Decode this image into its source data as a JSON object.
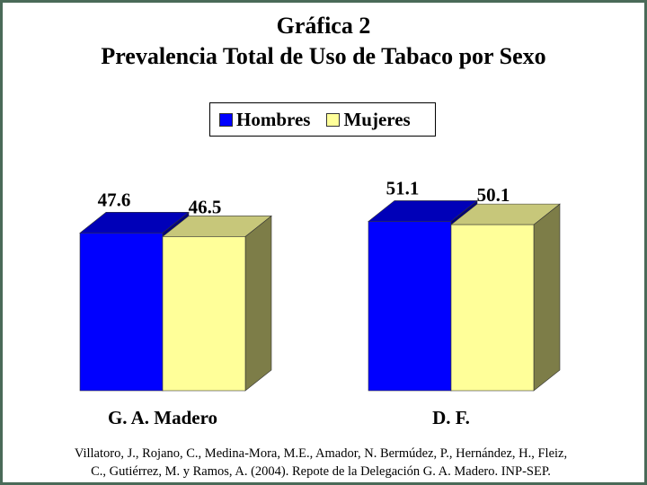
{
  "chart_data": {
    "type": "bar",
    "title": "Gráfica 2",
    "subtitle": "Prevalencia Total de Uso de Tabaco por Sexo",
    "categories": [
      "G. A. Madero",
      "D. F."
    ],
    "series": [
      {
        "name": "Hombres",
        "values": [
          47.6,
          51.1
        ],
        "color": "#0000ff"
      },
      {
        "name": "Mujeres",
        "values": [
          46.5,
          50.1
        ],
        "color": "#ffff99"
      }
    ],
    "three_d": true,
    "legend_position": "top-center",
    "grid": false
  },
  "source": {
    "line1": "Villatoro, J., Rojano, C., Medina-Mora, M.E., Amador, N. Bermúdez, P., Hernández, H., Fleiz,",
    "line2": "C., Gutiérrez, M. y Ramos, A. (2004). Repote de la Delegación G. A. Madero. INP-SEP."
  }
}
